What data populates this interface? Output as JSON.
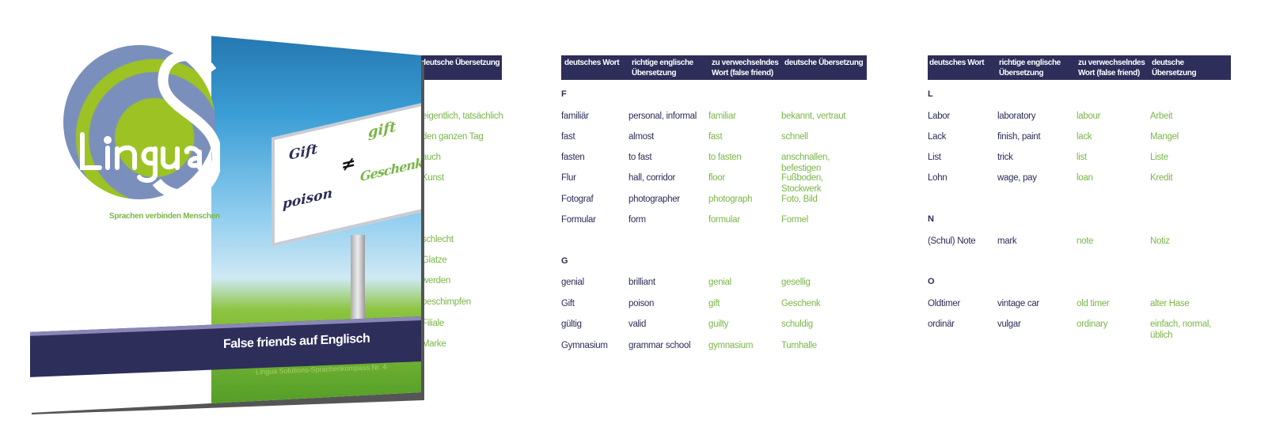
{
  "cover": {
    "logo_text": "LinguaS",
    "tagline": "Sprachen verbinden Menschen",
    "billboard": {
      "left_top": "Gift",
      "left_bottom": "poison",
      "symbol": "≠",
      "right_top": "gift",
      "right_bottom": "Geschenk"
    },
    "title": "False friends auf Englisch",
    "subtitle": "Lingua Solutions-Sprachenkompass Nr. 4"
  },
  "back_page": {
    "header": "deutsche Übersetzung",
    "words": [
      "eigentlich, tatsächlich",
      "den ganzen Tag",
      "auch",
      "Kunst",
      "schlecht",
      "Glatze",
      "werden",
      "beschimpfen",
      "Filiale",
      "Marke"
    ]
  },
  "tables": [
    {
      "headers": [
        "deutsches Wort",
        "richtige englische Übersetzung",
        "zu verwechselndes Wort (false friend)",
        "deutsche Übersetzung"
      ],
      "sections": [
        {
          "letter": "F",
          "rows": [
            [
              "familiär",
              "personal, informal",
              "familiar",
              "bekannt, vertraut"
            ],
            [
              "fast",
              "almost",
              "fast",
              "schnell"
            ],
            [
              "fasten",
              "to fast",
              "to fasten",
              "anschnallen, befestigen"
            ],
            [
              "Flur",
              "hall, corridor",
              "floor",
              "Fußboden, Stockwerk"
            ],
            [
              "Fotograf",
              "photographer",
              "photograph",
              "Foto, Bild"
            ],
            [
              "Formular",
              "form",
              "formular",
              "Formel"
            ]
          ]
        },
        {
          "letter": "G",
          "rows": [
            [
              "genial",
              "brilliant",
              "genial",
              "gesellig"
            ],
            [
              "Gift",
              "poison",
              "gift",
              "Geschenk"
            ],
            [
              "gültig",
              "valid",
              "guilty",
              "schuldig"
            ],
            [
              "Gymnasium",
              "grammar school",
              "gymnasium",
              "Turnhalle"
            ]
          ]
        }
      ]
    },
    {
      "headers": [
        "deutsches Wort",
        "richtige englische Übersetzung",
        "zu verwechselndes Wort (false friend)",
        "deutsche Übersetzung"
      ],
      "sections": [
        {
          "letter": "L",
          "rows": [
            [
              "Labor",
              "laboratory",
              "labour",
              "Arbeit"
            ],
            [
              "Lack",
              "finish, paint",
              "lack",
              "Mangel"
            ],
            [
              "List",
              "trick",
              "list",
              "Liste"
            ],
            [
              "Lohn",
              "wage, pay",
              "loan",
              "Kredit"
            ]
          ]
        },
        {
          "letter": "N",
          "rows": [
            [
              "(Schul) Note",
              "mark",
              "note",
              "Notiz"
            ]
          ]
        },
        {
          "letter": "O",
          "rows": [
            [
              "Oldtimer",
              "vintage car",
              "old timer",
              "alter Hase"
            ],
            [
              "ordinär",
              "vulgar",
              "ordinary",
              "einfach, normal, üblich"
            ]
          ]
        }
      ]
    }
  ],
  "colors": {
    "navy": "#2d2e5a",
    "green": "#7ab648",
    "globe_blue": "#7b8fbc"
  }
}
